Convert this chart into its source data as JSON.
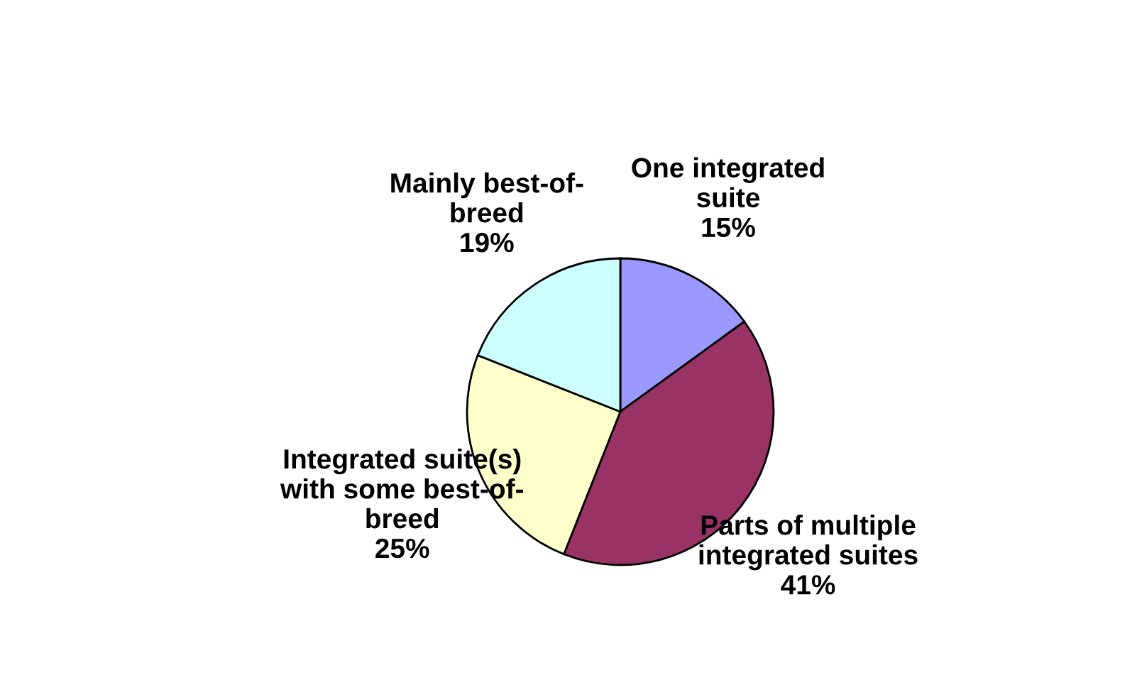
{
  "chart_data": {
    "type": "pie",
    "categories": [
      "One integrated\nsuite",
      "Parts of multiple\nintegrated suites",
      "Integrated suite(s)\nwith some best-of-\nbreed",
      "Mainly best-of-\nbreed"
    ],
    "values": [
      15,
      41,
      25,
      19
    ],
    "value_labels": [
      "15%",
      "41%",
      "25%",
      "19%"
    ],
    "colors": [
      "#9999ff",
      "#993366",
      "#ffffcc",
      "#ccffff"
    ]
  }
}
